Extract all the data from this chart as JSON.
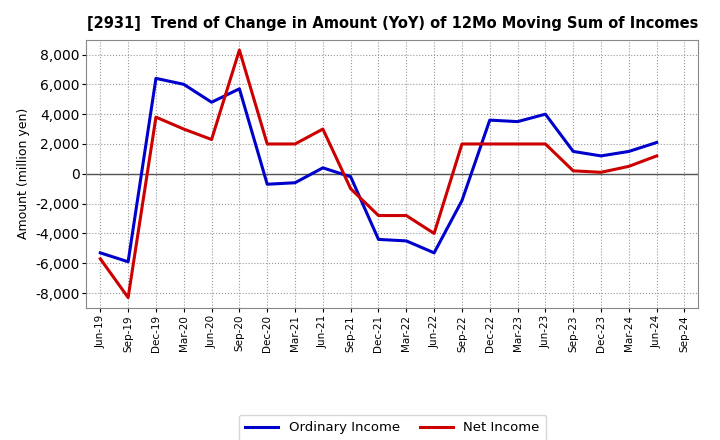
{
  "title": "[2931]  Trend of Change in Amount (YoY) of 12Mo Moving Sum of Incomes",
  "ylabel": "Amount (million yen)",
  "x_labels": [
    "Jun-19",
    "Sep-19",
    "Dec-19",
    "Mar-20",
    "Jun-20",
    "Sep-20",
    "Dec-20",
    "Mar-21",
    "Jun-21",
    "Sep-21",
    "Dec-21",
    "Mar-22",
    "Jun-22",
    "Sep-22",
    "Dec-22",
    "Mar-23",
    "Jun-23",
    "Sep-23",
    "Dec-23",
    "Mar-24",
    "Jun-24",
    "Sep-24"
  ],
  "ordinary_income": [
    -5300,
    -5900,
    6400,
    6000,
    4800,
    5700,
    -700,
    -600,
    400,
    -200,
    -4400,
    -4500,
    -5300,
    -1800,
    3600,
    3500,
    4000,
    1500,
    1200,
    1500,
    2100,
    null
  ],
  "net_income": [
    -5700,
    -8300,
    3800,
    3000,
    2300,
    8300,
    2000,
    2000,
    3000,
    -1000,
    -2800,
    -2800,
    -4000,
    2000,
    2000,
    2000,
    2000,
    200,
    100,
    500,
    1200,
    null
  ],
  "ordinary_income_color": "#0000cc",
  "net_income_color": "#cc0000",
  "background_color": "#ffffff",
  "plot_bg_color": "#ffffff",
  "grid_color": "#999999",
  "ylim": [
    -9000,
    9000
  ],
  "yticks": [
    -8000,
    -6000,
    -4000,
    -2000,
    0,
    2000,
    4000,
    6000,
    8000
  ],
  "legend_ordinary": "Ordinary Income",
  "legend_net": "Net Income",
  "line_width": 2.2
}
